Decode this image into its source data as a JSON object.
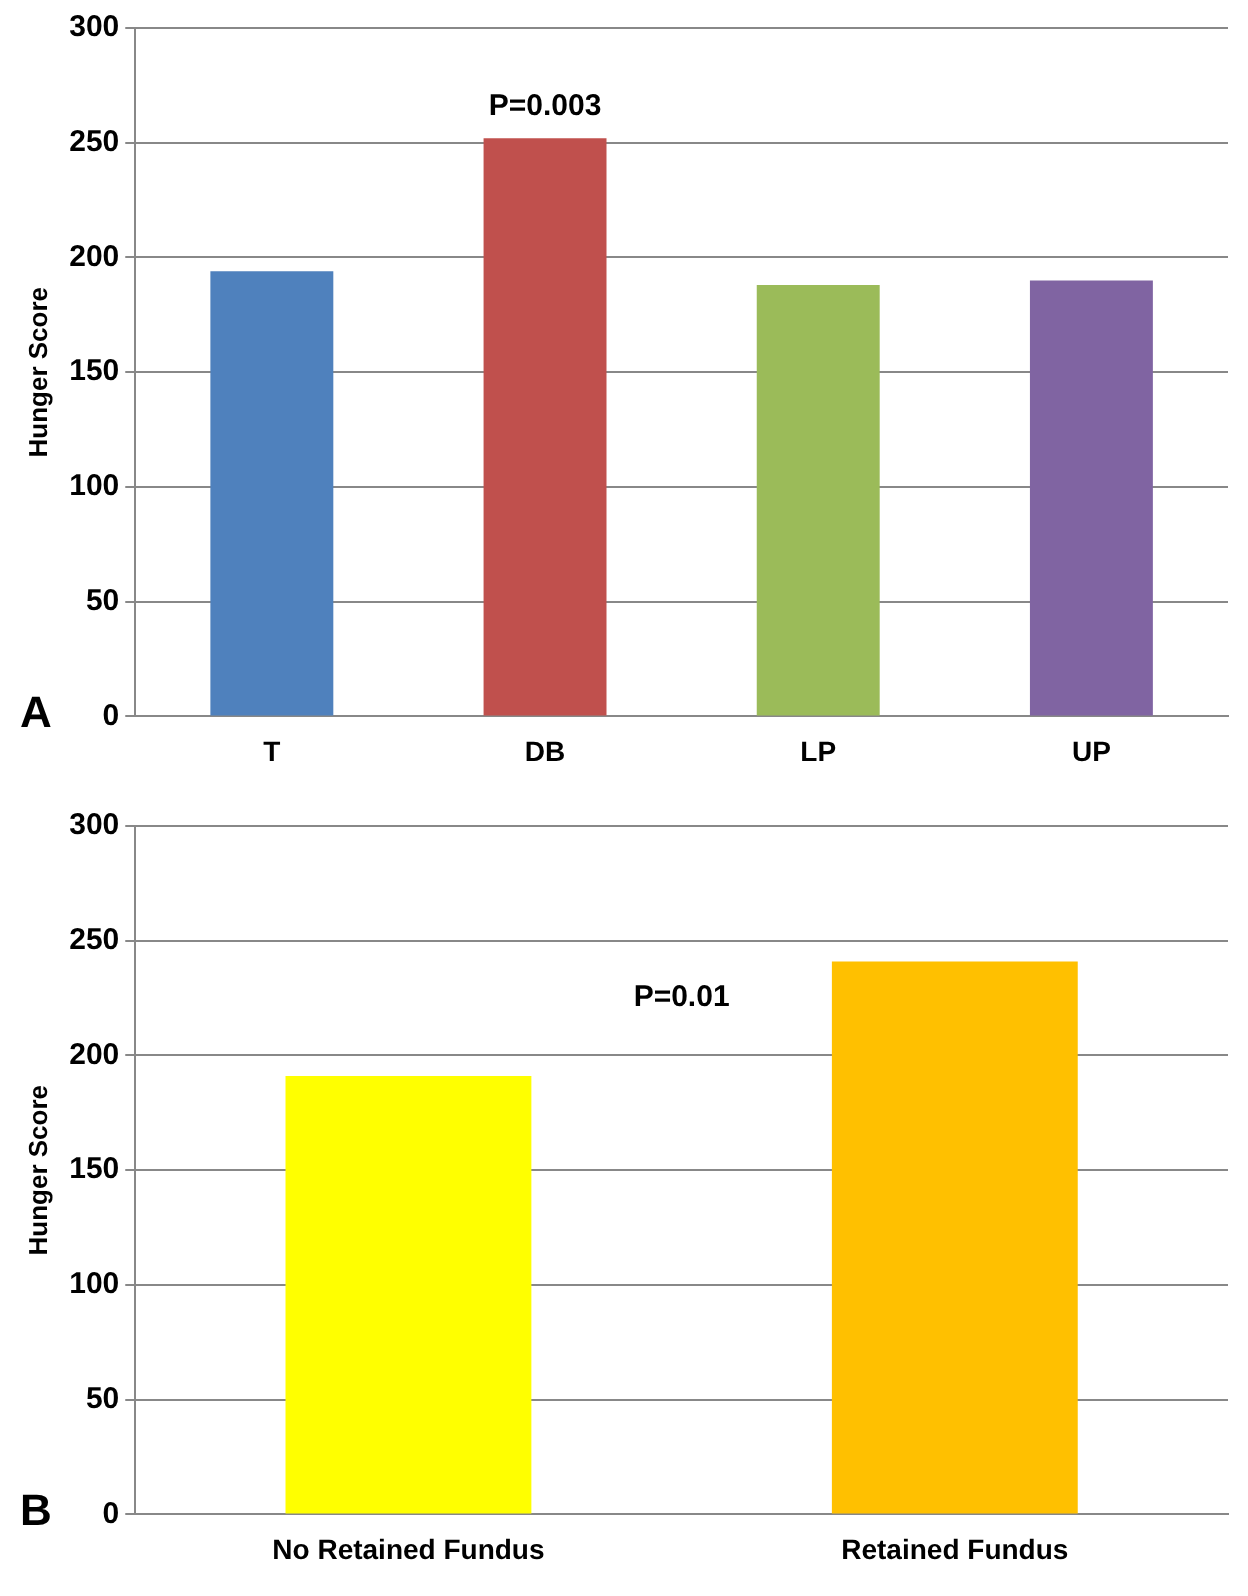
{
  "chart_data": [
    {
      "type": "bar",
      "ylabel": "Hunger Score",
      "categories": [
        "T",
        "DB",
        "LP",
        "UP"
      ],
      "values": [
        194,
        252,
        188,
        190
      ],
      "colors": [
        "#4f81bd",
        "#c0504d",
        "#9bbb59",
        "#8064a2"
      ],
      "ylim": [
        0,
        300
      ],
      "yticks": [
        0,
        50,
        100,
        150,
        200,
        250,
        300
      ],
      "grid": "y",
      "legend": false,
      "annotations": [
        {
          "text": "P=0.003",
          "x": "DB",
          "y": 252
        },
        "A"
      ]
    },
    {
      "type": "bar",
      "ylabel": "Hunger Score",
      "categories": [
        "No Retained Fundus",
        "Retained Fundus"
      ],
      "values": [
        191,
        241
      ],
      "colors": [
        "#ffff00",
        "#ffc000"
      ],
      "ylim": [
        0,
        300
      ],
      "yticks": [
        0,
        50,
        100,
        150,
        200,
        250,
        300
      ],
      "grid": "y",
      "legend": false,
      "annotations": [
        "P=0.01",
        "B"
      ]
    }
  ]
}
